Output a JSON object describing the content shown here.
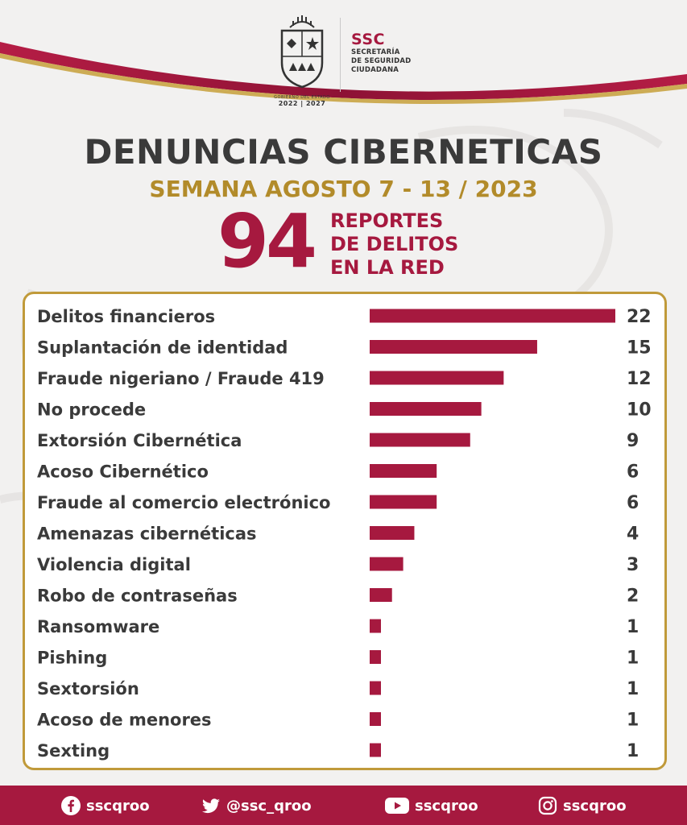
{
  "header": {
    "crest_caption_top": "GOBIERNO DEL ESTADO",
    "crest_caption_years": "2022 | 2027",
    "agency_short": "SSC",
    "agency_lines": [
      "SECRETARÍA",
      "DE SEGURIDAD",
      "CIUDADANA"
    ]
  },
  "title": "DENUNCIAS CIBERNETICAS",
  "subtitle": "SEMANA AGOSTO 7 - 13 / 2023",
  "total": {
    "value": "94",
    "label_lines": [
      "REPORTES",
      "DE DELITOS",
      "EN LA RED"
    ]
  },
  "colors": {
    "accent": "#a6193f",
    "gold": "#c09a3a",
    "dark_text": "#3a3a3a"
  },
  "chart_data": {
    "type": "bar",
    "orientation": "horizontal",
    "title": "DENUNCIAS CIBERNETICAS",
    "subtitle": "SEMANA AGOSTO 7 - 13 / 2023",
    "categories": [
      "Delitos financieros",
      "Suplantación de identidad",
      "Fraude nigeriano / Fraude 419",
      "No procede",
      "Extorsión Cibernética",
      "Acoso Cibernético",
      "Fraude al comercio electrónico",
      "Amenazas cibernéticas",
      "Violencia digital",
      "Robo de contraseñas",
      "Ransomware",
      "Pishing",
      "Sextorsión",
      "Acoso de menores",
      "Sexting"
    ],
    "values": [
      22,
      15,
      12,
      10,
      9,
      6,
      6,
      4,
      3,
      2,
      1,
      1,
      1,
      1,
      1
    ],
    "xlim": [
      0,
      22
    ],
    "grid": false,
    "data_labels": true,
    "bar_color": "#a6193f"
  },
  "footer": {
    "socials": [
      {
        "icon": "facebook-icon",
        "handle": "sscqroo"
      },
      {
        "icon": "twitter-icon",
        "handle": "@ssc_qroo"
      },
      {
        "icon": "youtube-icon",
        "handle": "sscqroo"
      },
      {
        "icon": "instagram-icon",
        "handle": "sscqroo"
      }
    ]
  }
}
